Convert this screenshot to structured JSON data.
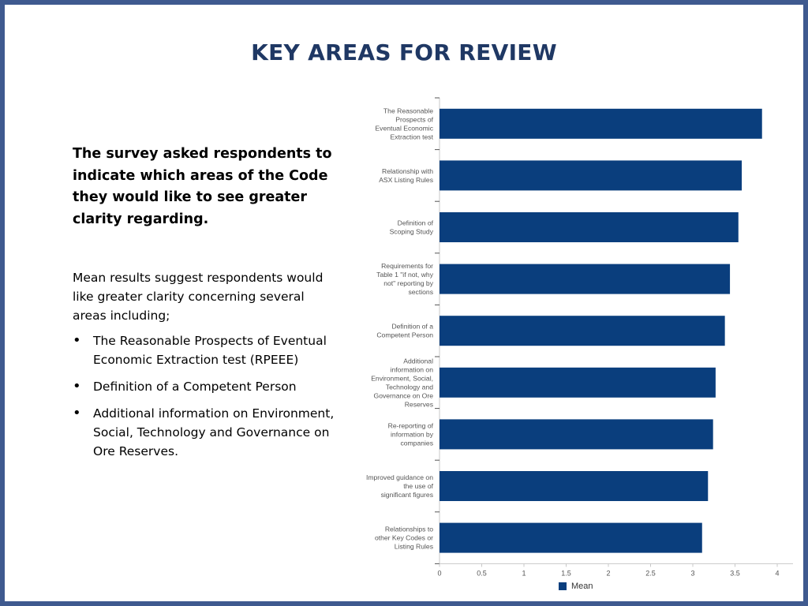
{
  "slide": {
    "title": "KEY AREAS FOR REVIEW",
    "intro": "The survey asked respondents to indicate which areas of the Code they would like to see greater clarity regarding.",
    "body": "Mean results suggest respondents would like greater clarity concerning several areas including;",
    "bullets": [
      "The Reasonable Prospects of Eventual Economic Extraction test (RPEEE)",
      "Definition of a Competent Person",
      "Additional information on Environment, Social, Technology and Governance on Ore Reserves."
    ],
    "bullet_char": "•"
  },
  "chart_data": {
    "type": "bar",
    "orientation": "horizontal",
    "categories": [
      "The Reasonable Prospects of Eventual Economic Extraction test",
      "Relationship with ASX Listing Rules",
      "Definition of Scoping Study",
      "Requirements for Table 1 \"if not, why not\" reporting by sections",
      "Definition of a Competent Person",
      "Additional information on Environment, Social, Technology and Governance on Ore Reserves",
      "Re-reporting of information by companies",
      "Improved guidance on the use of significant figures",
      "Relationships to other Key Codes or Listing Rules"
    ],
    "category_lines": [
      [
        "The Reasonable",
        "Prospects of",
        "Eventual Economic",
        "Extraction test"
      ],
      [
        "Relationship with",
        "ASX Listing Rules"
      ],
      [
        "Definition of",
        "Scoping Study"
      ],
      [
        "Requirements for",
        "Table 1 \"if not, why",
        "not\" reporting by",
        "sections"
      ],
      [
        "Definition of a",
        "Competent Person"
      ],
      [
        "Additional",
        "information on",
        "Environment, Social,",
        "Technology and",
        "Governance on Ore",
        "Reserves"
      ],
      [
        "Re-reporting of",
        "information by",
        "companies"
      ],
      [
        "Improved guidance on",
        "the use of",
        "significant figures"
      ],
      [
        "Relationships to",
        "other Key Codes or",
        "Listing Rules"
      ]
    ],
    "series": [
      {
        "name": "Mean",
        "color": "#0a3e7d",
        "values": [
          3.82,
          3.58,
          3.54,
          3.44,
          3.38,
          3.27,
          3.24,
          3.18,
          3.11
        ]
      }
    ],
    "xlim": [
      0,
      4
    ],
    "xticks": [
      "0",
      "0.5",
      "1",
      "1.5",
      "2",
      "2.5",
      "3",
      "3.5",
      "4"
    ],
    "xtick_values": [
      0,
      0.5,
      1,
      1.5,
      2,
      2.5,
      3,
      3.5,
      4
    ],
    "grid": false,
    "legend": "bottom"
  }
}
